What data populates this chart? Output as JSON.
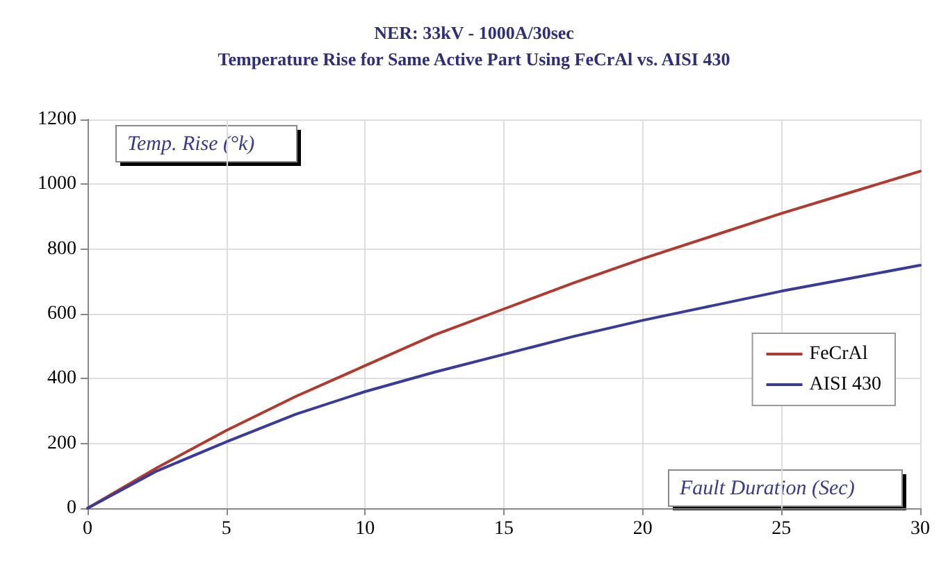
{
  "chart_data": {
    "type": "line",
    "title": "NER: 33kV - 1000A/30sec",
    "subtitle": "Temperature Rise for Same Active Part Using FeCrAl vs. AISI 430",
    "xlabel": "Fault Duration (Sec)",
    "ylabel": "Temp. Rise (°k)",
    "x": [
      0,
      2.5,
      5,
      7.5,
      10,
      12.5,
      15,
      17.5,
      20,
      22.5,
      25,
      27.5,
      30
    ],
    "series": [
      {
        "name": "FeCrAl",
        "color": "#b03a2e",
        "values": [
          0,
          125,
          240,
          345,
          440,
          535,
          615,
          695,
          770,
          840,
          910,
          975,
          1040
        ]
      },
      {
        "name": "AISI 430",
        "color": "#3a3a9a",
        "values": [
          0,
          115,
          205,
          290,
          360,
          420,
          475,
          530,
          580,
          625,
          670,
          710,
          750
        ]
      }
    ],
    "xlim": [
      0,
      30
    ],
    "xticks": [
      0,
      5,
      10,
      15,
      20,
      25,
      30
    ],
    "ylim": [
      0,
      1200
    ],
    "yticks": [
      0,
      200,
      400,
      600,
      800,
      1000,
      1200
    ],
    "grid": true,
    "legend": "right",
    "marker": "none",
    "line_style": "solid"
  }
}
